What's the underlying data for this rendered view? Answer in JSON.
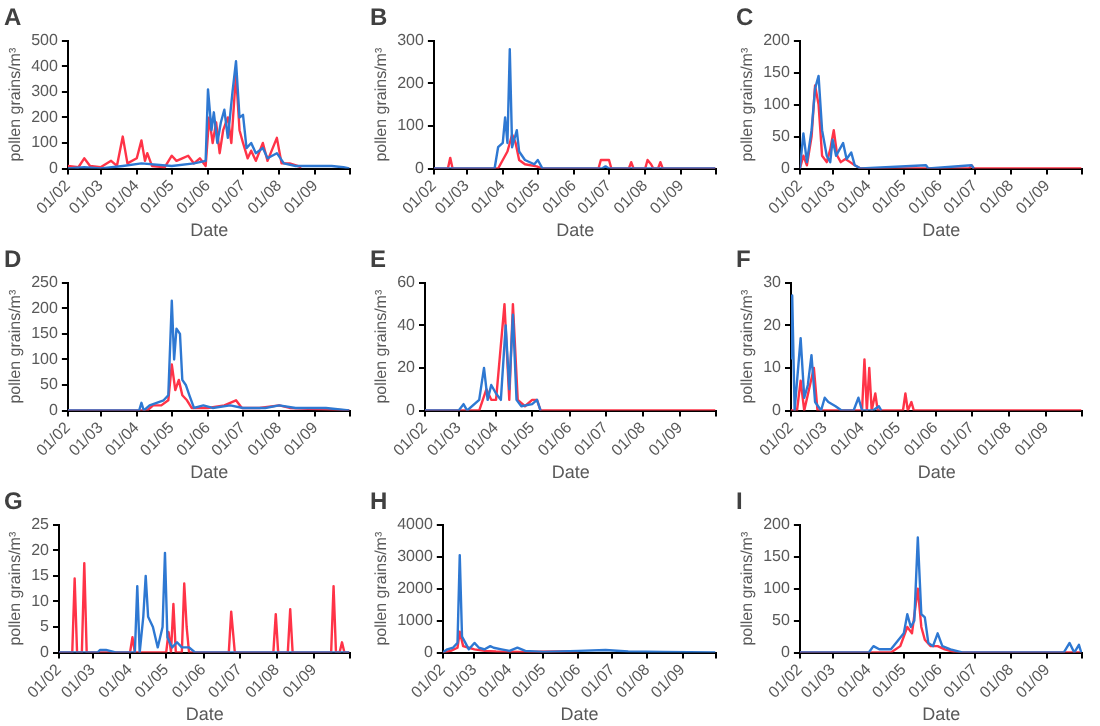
{
  "chart_data": [
    {
      "type": "line",
      "title": "A",
      "xlabel": "Date",
      "ylabel": "pollen grains/m³",
      "marker": "none",
      "xlim": [
        "--02-01",
        "--10-01"
      ],
      "xticks": [
        {
          "value": "--02-01",
          "label": "01/02"
        },
        {
          "value": "--03-01",
          "label": "01/03"
        },
        {
          "value": "--04-01",
          "label": "01/04"
        },
        {
          "value": "--05-01",
          "label": "01/05"
        },
        {
          "value": "--06-01",
          "label": "01/06"
        },
        {
          "value": "--07-01",
          "label": "01/07"
        },
        {
          "value": "--08-01",
          "label": "01/08"
        },
        {
          "value": "--09-01",
          "label": "01/09"
        },
        {
          "value": "--10-01",
          "label": null
        }
      ],
      "ylim": [
        0,
        500
      ],
      "yticks": [
        0,
        100,
        200,
        300,
        400,
        500
      ],
      "series": [
        {
          "color": "#2e78d2",
          "x": [
            "--02-01",
            "--02-15",
            "--03-01",
            "--03-20",
            "--04-05",
            "--05-01",
            "--05-20",
            "--05-30",
            "--06-01",
            "--06-04",
            "--06-06",
            "--06-09",
            "--06-12",
            "--06-15",
            "--06-18",
            "--06-22",
            "--06-25",
            "--06-28",
            "--07-01",
            "--07-04",
            "--07-08",
            "--07-12",
            "--07-18",
            "--07-22",
            "--07-30",
            "--08-05",
            "--08-15",
            "--09-01",
            "--09-15",
            "--09-25",
            "--09-30"
          ],
          "values": [
            0,
            5,
            0,
            10,
            20,
            10,
            20,
            30,
            310,
            150,
            220,
            100,
            180,
            230,
            120,
            300,
            420,
            200,
            210,
            80,
            100,
            60,
            80,
            40,
            60,
            20,
            10,
            10,
            10,
            5,
            0
          ]
        },
        {
          "color": "#ff3347",
          "x": [
            "--02-01",
            "--02-10",
            "--02-15",
            "--02-20",
            "--03-01",
            "--03-10",
            "--03-15",
            "--03-20",
            "--03-24",
            "--04-01",
            "--04-05",
            "--04-08",
            "--04-10",
            "--04-14",
            "--04-25",
            "--05-01",
            "--05-05",
            "--05-10",
            "--05-15",
            "--05-20",
            "--05-25",
            "--05-30",
            "--06-02",
            "--06-05",
            "--06-08",
            "--06-11",
            "--06-14",
            "--06-18",
            "--06-21",
            "--06-25",
            "--06-28",
            "--07-01",
            "--07-05",
            "--07-08",
            "--07-12",
            "--07-18",
            "--07-22",
            "--07-30",
            "--08-03",
            "--08-10",
            "--08-20"
          ],
          "values": [
            10,
            5,
            40,
            10,
            5,
            30,
            10,
            125,
            20,
            40,
            110,
            30,
            60,
            10,
            5,
            50,
            30,
            40,
            50,
            20,
            40,
            10,
            200,
            100,
            180,
            60,
            150,
            200,
            100,
            370,
            150,
            100,
            40,
            70,
            30,
            100,
            30,
            120,
            20,
            20,
            5
          ]
        }
      ]
    },
    {
      "type": "line",
      "title": "B",
      "xlabel": "Date",
      "ylabel": "pollen grains/m³",
      "marker": "none",
      "xlim": [
        "--02-01",
        "--10-01"
      ],
      "xticks": [
        {
          "value": "--02-01",
          "label": "01/02"
        },
        {
          "value": "--03-01",
          "label": "01/03"
        },
        {
          "value": "--04-01",
          "label": "01/04"
        },
        {
          "value": "--05-01",
          "label": "01/05"
        },
        {
          "value": "--06-01",
          "label": "01/06"
        },
        {
          "value": "--07-01",
          "label": "01/07"
        },
        {
          "value": "--08-01",
          "label": "01/08"
        },
        {
          "value": "--09-01",
          "label": "01/09"
        },
        {
          "value": "--10-01",
          "label": null
        }
      ],
      "ylim": [
        0,
        300
      ],
      "yticks": [
        0,
        100,
        200,
        300
      ],
      "series": [
        {
          "color": "#2e78d2",
          "x": [
            "--02-01",
            "--03-25",
            "--03-28",
            "--04-01",
            "--04-03",
            "--04-05",
            "--04-07",
            "--04-09",
            "--04-11",
            "--04-13",
            "--04-15",
            "--04-20",
            "--04-28",
            "--05-01",
            "--05-05",
            "--06-25",
            "--06-28",
            "--07-01",
            "--09-30"
          ],
          "values": [
            0,
            0,
            50,
            60,
            120,
            60,
            280,
            50,
            70,
            90,
            40,
            20,
            10,
            20,
            0,
            0,
            5,
            0,
            0
          ]
        },
        {
          "color": "#ff3347",
          "x": [
            "--02-01",
            "--02-13",
            "--02-15",
            "--02-17",
            "--03-28",
            "--04-01",
            "--04-05",
            "--04-09",
            "--04-12",
            "--04-15",
            "--04-20",
            "--04-30",
            "--05-05",
            "--06-22",
            "--06-24",
            "--06-28",
            "--07-01",
            "--07-03",
            "--07-18",
            "--07-20",
            "--07-22",
            "--08-01",
            "--08-03",
            "--08-06",
            "--08-08",
            "--08-12",
            "--08-14",
            "--08-16",
            "--09-30"
          ],
          "values": [
            0,
            0,
            25,
            0,
            0,
            20,
            40,
            80,
            60,
            20,
            10,
            5,
            0,
            0,
            20,
            20,
            20,
            0,
            0,
            15,
            0,
            0,
            20,
            10,
            0,
            0,
            15,
            0,
            0
          ]
        }
      ]
    },
    {
      "type": "line",
      "title": "C",
      "xlabel": "Date",
      "ylabel": "pollen grains/m³",
      "marker": "none",
      "xlim": [
        "--02-01",
        "--10-01"
      ],
      "xticks": [
        {
          "value": "--02-01",
          "label": "01/02"
        },
        {
          "value": "--03-01",
          "label": "01/03"
        },
        {
          "value": "--04-01",
          "label": "01/04"
        },
        {
          "value": "--05-01",
          "label": "01/05"
        },
        {
          "value": "--06-01",
          "label": "01/06"
        },
        {
          "value": "--07-01",
          "label": "01/07"
        },
        {
          "value": "--08-01",
          "label": "01/08"
        },
        {
          "value": "--09-01",
          "label": "01/09"
        },
        {
          "value": "--10-01",
          "label": null
        }
      ],
      "ylim": [
        0,
        200
      ],
      "yticks": [
        0,
        50,
        100,
        150,
        200
      ],
      "series": [
        {
          "color": "#2e78d2",
          "x": [
            "--02-01",
            "--02-04",
            "--02-07",
            "--02-11",
            "--02-14",
            "--02-17",
            "--02-20",
            "--02-24",
            "--02-27",
            "--03-01",
            "--03-04",
            "--03-07",
            "--03-10",
            "--03-13",
            "--03-17",
            "--03-20",
            "--03-25",
            "--05-20",
            "--05-22",
            "--06-28",
            "--06-30"
          ],
          "values": [
            0,
            55,
            10,
            60,
            125,
            145,
            60,
            20,
            10,
            45,
            20,
            30,
            40,
            15,
            25,
            5,
            0,
            5,
            0,
            5,
            0
          ]
        },
        {
          "color": "#ff3347",
          "x": [
            "--02-01",
            "--02-04",
            "--02-07",
            "--02-11",
            "--02-14",
            "--02-17",
            "--02-20",
            "--02-24",
            "--02-27",
            "--03-02",
            "--03-05",
            "--03-08",
            "--03-12",
            "--03-16",
            "--03-20",
            "--03-25",
            "--06-26",
            "--06-28",
            "--06-30",
            "--09-30"
          ],
          "values": [
            0,
            20,
            5,
            50,
            130,
            100,
            20,
            10,
            30,
            60,
            20,
            10,
            15,
            10,
            5,
            0,
            0,
            5,
            0,
            0
          ]
        }
      ]
    },
    {
      "type": "line",
      "title": "D",
      "xlabel": "Date",
      "ylabel": "pollen grains/m³",
      "marker": "none",
      "xlim": [
        "--02-01",
        "--10-01"
      ],
      "xticks": [
        {
          "value": "--02-01",
          "label": "01/02"
        },
        {
          "value": "--03-01",
          "label": "01/03"
        },
        {
          "value": "--04-01",
          "label": "01/04"
        },
        {
          "value": "--05-01",
          "label": "01/05"
        },
        {
          "value": "--06-01",
          "label": "01/06"
        },
        {
          "value": "--07-01",
          "label": "01/07"
        },
        {
          "value": "--08-01",
          "label": "01/08"
        },
        {
          "value": "--09-01",
          "label": "01/09"
        },
        {
          "value": "--10-01",
          "label": null
        }
      ],
      "ylim": [
        0,
        250
      ],
      "yticks": [
        0,
        50,
        100,
        150,
        200,
        250
      ],
      "series": [
        {
          "color": "#2e78d2",
          "x": [
            "--02-01",
            "--04-03",
            "--04-05",
            "--04-07",
            "--04-12",
            "--04-18",
            "--04-24",
            "--04-28",
            "--05-01",
            "--05-03",
            "--05-05",
            "--05-08",
            "--05-10",
            "--05-13",
            "--05-16",
            "--05-20",
            "--05-28",
            "--06-05",
            "--06-20",
            "--07-01",
            "--07-20",
            "--08-01",
            "--08-15",
            "--09-10",
            "--09-30"
          ],
          "values": [
            0,
            0,
            15,
            0,
            10,
            15,
            20,
            30,
            215,
            100,
            160,
            150,
            60,
            50,
            30,
            5,
            10,
            5,
            10,
            5,
            5,
            10,
            5,
            5,
            0
          ]
        },
        {
          "color": "#ff3347",
          "x": [
            "--02-01",
            "--04-10",
            "--04-15",
            "--04-22",
            "--04-28",
            "--05-01",
            "--05-04",
            "--05-07",
            "--05-10",
            "--05-14",
            "--05-18",
            "--06-01",
            "--06-15",
            "--06-25",
            "--06-30",
            "--07-15",
            "--08-01",
            "--08-10",
            "--09-30"
          ],
          "values": [
            0,
            0,
            10,
            10,
            20,
            90,
            40,
            60,
            30,
            20,
            5,
            5,
            10,
            20,
            5,
            5,
            10,
            5,
            0
          ]
        }
      ]
    },
    {
      "type": "line",
      "title": "E",
      "xlabel": "Date",
      "ylabel": "pollen grains/m³",
      "marker": "none",
      "xlim": [
        "--02-01",
        "--10-01"
      ],
      "xticks": [
        {
          "value": "--02-01",
          "label": "01/02"
        },
        {
          "value": "--03-01",
          "label": "01/03"
        },
        {
          "value": "--04-01",
          "label": "01/04"
        },
        {
          "value": "--05-01",
          "label": "01/05"
        },
        {
          "value": "--06-01",
          "label": "01/06"
        },
        {
          "value": "--07-01",
          "label": "01/07"
        },
        {
          "value": "--08-01",
          "label": "01/08"
        },
        {
          "value": "--09-01",
          "label": "01/09"
        },
        {
          "value": "--10-01",
          "label": null
        }
      ],
      "ylim": [
        0,
        60
      ],
      "yticks": [
        0,
        20,
        40,
        60
      ],
      "series": [
        {
          "color": "#2e78d2",
          "x": [
            "--02-01",
            "--03-01",
            "--03-05",
            "--03-08",
            "--03-18",
            "--03-22",
            "--03-25",
            "--03-28",
            "--04-01",
            "--04-05",
            "--04-09",
            "--04-12",
            "--04-15",
            "--04-18",
            "--04-22",
            "--05-01",
            "--05-05",
            "--05-08"
          ],
          "values": [
            0,
            0,
            3,
            0,
            5,
            20,
            5,
            12,
            8,
            5,
            40,
            10,
            45,
            5,
            2,
            3,
            5,
            0
          ]
        },
        {
          "color": "#ff3347",
          "x": [
            "--02-01",
            "--03-18",
            "--03-24",
            "--03-28",
            "--04-01",
            "--04-08",
            "--04-12",
            "--04-15",
            "--04-19",
            "--04-25",
            "--05-01",
            "--05-05",
            "--05-08",
            "--09-30"
          ],
          "values": [
            0,
            0,
            10,
            5,
            5,
            50,
            5,
            50,
            5,
            2,
            5,
            5,
            0,
            0
          ]
        }
      ]
    },
    {
      "type": "line",
      "title": "F",
      "xlabel": "Date",
      "ylabel": "pollen grains/m³",
      "marker": "none",
      "xlim": [
        "--02-01",
        "--10-01"
      ],
      "xticks": [
        {
          "value": "--02-01",
          "label": "01/02"
        },
        {
          "value": "--03-01",
          "label": "01/03"
        },
        {
          "value": "--04-01",
          "label": "01/04"
        },
        {
          "value": "--05-01",
          "label": "01/05"
        },
        {
          "value": "--06-01",
          "label": "01/06"
        },
        {
          "value": "--07-01",
          "label": "01/07"
        },
        {
          "value": "--08-01",
          "label": "01/08"
        },
        {
          "value": "--09-01",
          "label": "01/09"
        },
        {
          "value": "--10-01",
          "label": null
        }
      ],
      "ylim": [
        0,
        30
      ],
      "yticks": [
        0,
        10,
        20,
        30
      ],
      "series": [
        {
          "color": "#2e78d2",
          "x": [
            "--02-01",
            "--02-02",
            "--02-04",
            "--02-09",
            "--02-12",
            "--02-15",
            "--02-18",
            "--02-21",
            "--02-26",
            "--03-01",
            "--03-04",
            "--03-10",
            "--03-15",
            "--03-25",
            "--03-29",
            "--04-01",
            "--04-10",
            "--04-15",
            "--04-17"
          ],
          "values": [
            12,
            27,
            0,
            17,
            3,
            6,
            13,
            2,
            0,
            3,
            2,
            1,
            0,
            0,
            3,
            0,
            0,
            1,
            0
          ]
        },
        {
          "color": "#ff3347",
          "x": [
            "--02-01",
            "--02-06",
            "--02-09",
            "--02-12",
            "--02-20",
            "--02-23",
            "--03-03",
            "--04-01",
            "--04-03",
            "--04-05",
            "--04-07",
            "--04-09",
            "--04-12",
            "--04-14",
            "--05-05",
            "--05-07",
            "--05-09",
            "--05-12",
            "--05-14",
            "--09-30"
          ],
          "values": [
            0,
            0,
            7,
            0,
            10,
            0,
            0,
            0,
            12,
            0,
            10,
            0,
            4,
            0,
            0,
            4,
            0,
            2,
            0,
            0
          ]
        }
      ]
    },
    {
      "type": "line",
      "title": "G",
      "xlabel": "Date",
      "ylabel": "pollen grains/m³",
      "marker": "none",
      "xlim": [
        "--02-01",
        "--10-01"
      ],
      "xticks": [
        {
          "value": "--02-01",
          "label": "01/02"
        },
        {
          "value": "--03-01",
          "label": "01/03"
        },
        {
          "value": "--04-01",
          "label": "01/04"
        },
        {
          "value": "--05-01",
          "label": "01/05"
        },
        {
          "value": "--06-01",
          "label": "01/06"
        },
        {
          "value": "--07-01",
          "label": "01/07"
        },
        {
          "value": "--08-01",
          "label": "01/08"
        },
        {
          "value": "--09-01",
          "label": "01/09"
        },
        {
          "value": "--10-01",
          "label": null
        }
      ],
      "ylim": [
        0,
        25
      ],
      "yticks": [
        0,
        5,
        10,
        15,
        20,
        25
      ],
      "series": [
        {
          "color": "#2e78d2",
          "x": [
            "--02-01",
            "--03-05",
            "--03-07",
            "--03-12",
            "--03-20",
            "--04-05",
            "--04-07",
            "--04-09",
            "--04-12",
            "--04-14",
            "--04-16",
            "--04-20",
            "--04-24",
            "--04-28",
            "--04-30",
            "--05-02",
            "--05-06",
            "--05-10",
            "--05-14",
            "--05-20",
            "--05-25",
            "--09-30"
          ],
          "values": [
            0,
            0,
            0.5,
            0.5,
            0,
            0,
            13,
            0,
            7,
            15,
            7,
            5,
            1,
            5,
            19.5,
            3,
            1,
            2,
            1,
            1,
            0,
            0
          ]
        },
        {
          "color": "#ff3347",
          "x": [
            "--02-01",
            "--02-12",
            "--02-14",
            "--02-16",
            "--02-20",
            "--02-22",
            "--02-24",
            "--04-01",
            "--04-03",
            "--04-05",
            "--05-01",
            "--05-03",
            "--05-05",
            "--05-07",
            "--05-09",
            "--05-14",
            "--05-16",
            "--05-18",
            "--05-20",
            "--06-22",
            "--06-24",
            "--06-27",
            "--07-29",
            "--07-31",
            "--08-02",
            "--08-10",
            "--08-12",
            "--08-14",
            "--09-15",
            "--09-17",
            "--09-19",
            "--09-22",
            "--09-24",
            "--09-26",
            "--09-30"
          ],
          "values": [
            0,
            0,
            14.5,
            0,
            0,
            17.5,
            0,
            0,
            3,
            0,
            0,
            4,
            0,
            9.5,
            0,
            0,
            13.5,
            5,
            0,
            0,
            8,
            0,
            0,
            7.5,
            0,
            0,
            8.5,
            0,
            0,
            13,
            0,
            0,
            2,
            0,
            0
          ]
        }
      ]
    },
    {
      "type": "line",
      "title": "H",
      "xlabel": "Date",
      "ylabel": "pollen grains/m³",
      "marker": "none",
      "xlim": [
        "--02-01",
        "--10-01"
      ],
      "xticks": [
        {
          "value": "--02-01",
          "label": "01/02"
        },
        {
          "value": "--03-01",
          "label": "01/03"
        },
        {
          "value": "--04-01",
          "label": "01/04"
        },
        {
          "value": "--05-01",
          "label": "01/05"
        },
        {
          "value": "--06-01",
          "label": "01/06"
        },
        {
          "value": "--07-01",
          "label": "01/07"
        },
        {
          "value": "--08-01",
          "label": "01/08"
        },
        {
          "value": "--09-01",
          "label": "01/09"
        },
        {
          "value": "--10-01",
          "label": null
        }
      ],
      "ylim": [
        0,
        4000
      ],
      "yticks": [
        0,
        1000,
        2000,
        3000,
        4000
      ],
      "series": [
        {
          "color": "#2e78d2",
          "x": [
            "--02-01",
            "--02-05",
            "--02-10",
            "--02-14",
            "--02-16",
            "--02-18",
            "--02-21",
            "--02-24",
            "--03-01",
            "--03-05",
            "--03-10",
            "--03-15",
            "--03-18",
            "--03-25",
            "--04-01",
            "--04-08",
            "--04-15",
            "--05-01",
            "--06-01",
            "--06-25",
            "--07-15",
            "--08-15",
            "--09-30"
          ],
          "values": [
            0,
            100,
            150,
            300,
            3050,
            500,
            300,
            100,
            300,
            150,
            100,
            200,
            150,
            100,
            50,
            150,
            50,
            20,
            50,
            80,
            30,
            20,
            0
          ]
        },
        {
          "color": "#ff3347",
          "x": [
            "--02-01",
            "--02-08",
            "--02-14",
            "--02-16",
            "--02-19",
            "--02-24",
            "--03-01",
            "--03-10",
            "--03-20",
            "--04-10",
            "--06-01"
          ],
          "values": [
            0,
            50,
            150,
            650,
            200,
            150,
            100,
            50,
            30,
            20,
            40
          ]
        }
      ]
    },
    {
      "type": "line",
      "title": "I",
      "xlabel": "Date",
      "ylabel": "pollen grains/m³",
      "marker": "none",
      "xlim": [
        "--02-01",
        "--10-01"
      ],
      "xticks": [
        {
          "value": "--02-01",
          "label": "01/02"
        },
        {
          "value": "--03-01",
          "label": "01/03"
        },
        {
          "value": "--04-01",
          "label": "01/04"
        },
        {
          "value": "--05-01",
          "label": "01/05"
        },
        {
          "value": "--06-01",
          "label": "01/06"
        },
        {
          "value": "--07-01",
          "label": "01/07"
        },
        {
          "value": "--08-01",
          "label": "01/08"
        },
        {
          "value": "--09-01",
          "label": "01/09"
        },
        {
          "value": "--10-01",
          "label": null
        }
      ],
      "ylim": [
        0,
        200
      ],
      "yticks": [
        0,
        50,
        100,
        150,
        200
      ],
      "series": [
        {
          "color": "#2e78d2",
          "x": [
            "--02-01",
            "--04-01",
            "--04-05",
            "--04-10",
            "--04-20",
            "--05-01",
            "--05-04",
            "--05-07",
            "--05-10",
            "--05-13",
            "--05-16",
            "--05-19",
            "--05-22",
            "--05-26",
            "--05-30",
            "--06-03",
            "--06-10",
            "--06-20",
            "--09-15",
            "--09-20",
            "--09-24",
            "--09-28",
            "--09-30"
          ],
          "values": [
            0,
            0,
            10,
            5,
            5,
            30,
            60,
            40,
            50,
            180,
            60,
            55,
            15,
            10,
            30,
            10,
            5,
            0,
            0,
            15,
            0,
            12,
            0
          ]
        },
        {
          "color": "#ff3347",
          "x": [
            "--02-01",
            "--04-20",
            "--04-28",
            "--05-04",
            "--05-08",
            "--05-13",
            "--05-16",
            "--05-19",
            "--05-24",
            "--05-30",
            "--06-05",
            "--06-15",
            "--09-30"
          ],
          "values": [
            0,
            0,
            10,
            40,
            30,
            100,
            40,
            20,
            10,
            10,
            5,
            0,
            0
          ]
        }
      ]
    }
  ]
}
